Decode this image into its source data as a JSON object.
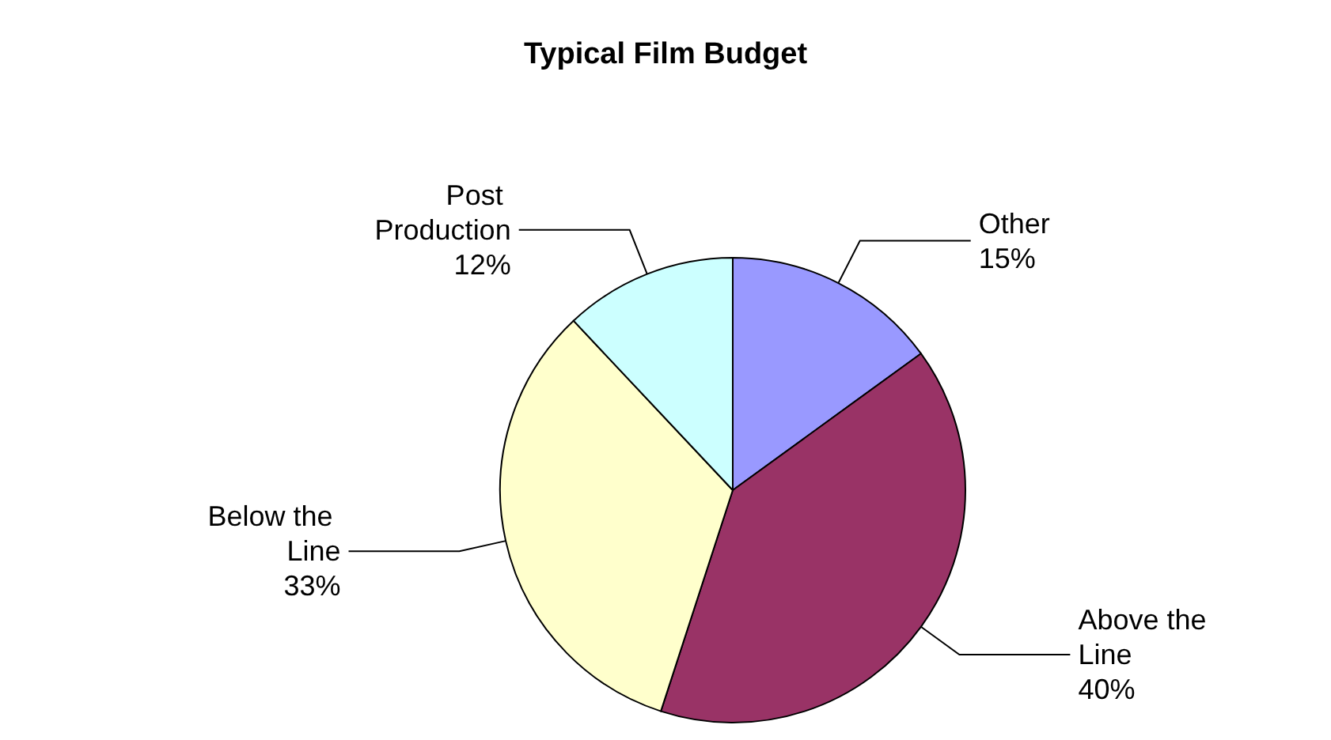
{
  "chart_data": {
    "type": "pie",
    "title": "Typical Film Budget",
    "categories": [
      "Other",
      "Above the Line",
      "Below the Line",
      "Post Production"
    ],
    "values": [
      15,
      40,
      33,
      12
    ],
    "colors": [
      "#9999ff",
      "#993366",
      "#ffffcc",
      "#ccffff"
    ],
    "value_labels": [
      "15%",
      "40%",
      "33%",
      "12%"
    ],
    "legend": false
  }
}
